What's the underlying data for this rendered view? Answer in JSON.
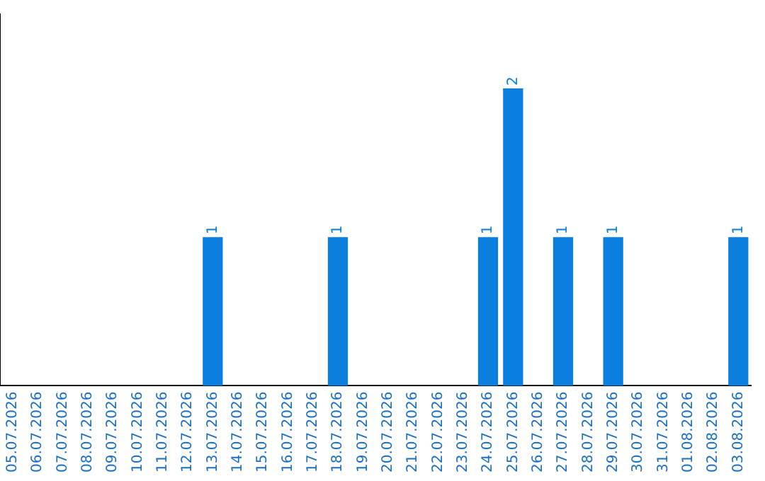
{
  "chart_data": {
    "type": "bar",
    "categories": [
      "05.07.2026",
      "06.07.2026",
      "07.07.2026",
      "08.07.2026",
      "09.07.2026",
      "10.07.2026",
      "11.07.2026",
      "12.07.2026",
      "13.07.2026",
      "14.07.2026",
      "15.07.2026",
      "16.07.2026",
      "17.07.2026",
      "18.07.2026",
      "19.07.2026",
      "20.07.2026",
      "21.07.2026",
      "22.07.2026",
      "23.07.2026",
      "24.07.2026",
      "25.07.2026",
      "26.07.2026",
      "27.07.2026",
      "28.07.2026",
      "29.07.2026",
      "30.07.2026",
      "31.07.2026",
      "01.08.2026",
      "02.08.2026",
      "03.08.2026"
    ],
    "values": [
      0,
      0,
      0,
      0,
      0,
      0,
      0,
      0,
      1,
      0,
      0,
      0,
      0,
      1,
      0,
      0,
      0,
      0,
      0,
      1,
      2,
      0,
      1,
      0,
      1,
      0,
      0,
      0,
      0,
      1
    ],
    "value_labels": [
      null,
      null,
      null,
      null,
      null,
      null,
      null,
      null,
      "1",
      null,
      null,
      null,
      null,
      "1",
      null,
      null,
      null,
      null,
      null,
      "1",
      "2",
      null,
      "1",
      null,
      "1",
      null,
      null,
      null,
      null,
      "1"
    ],
    "color": "#0a7fe0",
    "grid": false,
    "legend": false,
    "tick_labels": "x"
  }
}
